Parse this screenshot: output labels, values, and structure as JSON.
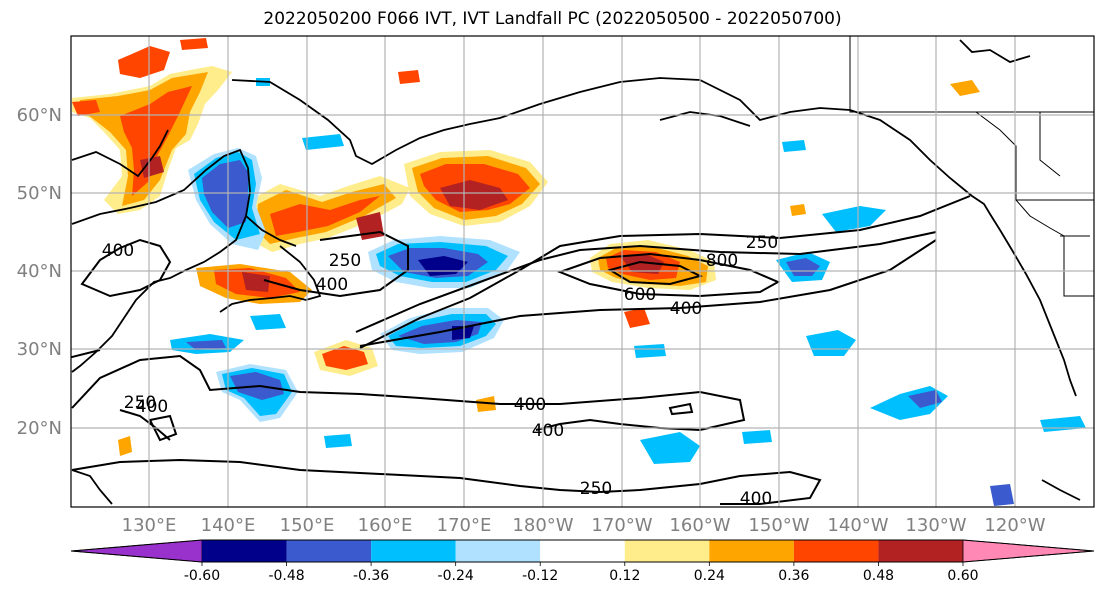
{
  "title": "2022050200 F066 IVT, IVT Landfall PC (2022050500 - 2022050700)",
  "lat_labels": [
    "60°N",
    "50°N",
    "40°N",
    "30°N",
    "20°N"
  ],
  "lon_labels": [
    "130°E",
    "140°E",
    "150°E",
    "160°E",
    "170°E",
    "180°W",
    "170°W",
    "160°W",
    "150°W",
    "140°W",
    "130°W",
    "120°W"
  ],
  "contour_labels": [
    "250",
    "400",
    "600",
    "800"
  ],
  "contour_label_instances": [
    "250",
    "400",
    "250",
    "400",
    "250",
    "800",
    "600",
    "400",
    "400",
    "250",
    "400",
    "400",
    "400"
  ],
  "colorbar": {
    "colors": [
      "#9932cc",
      "#00008b",
      "#3a5acd",
      "#00bfff",
      "#b0e2ff",
      "#ffffff",
      "#ffec8b",
      "#ffa500",
      "#ff4500",
      "#b22222",
      "#ff88b4"
    ],
    "tick_labels": [
      "-0.60",
      "-0.48",
      "-0.36",
      "-0.24",
      "-0.12",
      "0.12",
      "0.24",
      "0.36",
      "0.48",
      "0.60"
    ]
  }
}
